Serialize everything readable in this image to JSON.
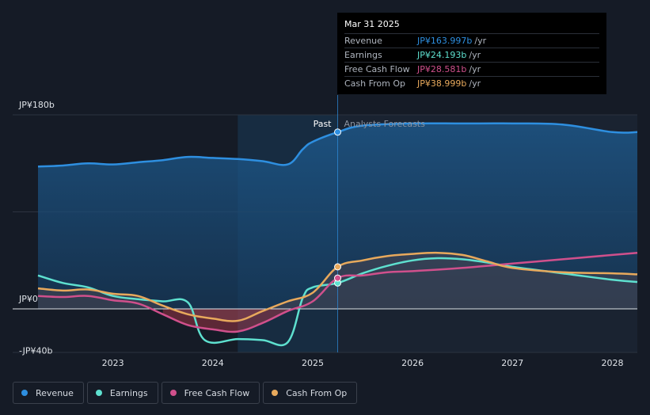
{
  "tooltip": {
    "date": "Mar 31 2025",
    "rows": [
      {
        "label": "Revenue",
        "value": "JP¥163.997b",
        "unit": "/yr",
        "color": "#2e8fe0"
      },
      {
        "label": "Earnings",
        "value": "JP¥24.193b",
        "unit": "/yr",
        "color": "#5ee0cf"
      },
      {
        "label": "Free Cash Flow",
        "value": "JP¥28.581b",
        "unit": "/yr",
        "color": "#d0508c"
      },
      {
        "label": "Cash From Op",
        "value": "JP¥38.999b",
        "unit": "/yr",
        "color": "#e8a95c"
      }
    ]
  },
  "labels": {
    "past": "Past",
    "forecast": "Analysts Forecasts"
  },
  "legend": [
    {
      "label": "Revenue",
      "color": "#2e8fe0"
    },
    {
      "label": "Earnings",
      "color": "#5ee0cf"
    },
    {
      "label": "Free Cash Flow",
      "color": "#d0508c"
    },
    {
      "label": "Cash From Op",
      "color": "#e8a95c"
    }
  ],
  "chart_data": {
    "type": "line",
    "y_unit": "JP¥ billions",
    "ylim": [
      -40,
      180
    ],
    "y_tick_labels": [
      {
        "value": 180,
        "label": "JP¥180b"
      },
      {
        "value": 0,
        "label": "JP¥0"
      },
      {
        "value": -40,
        "label": "-JP¥40b"
      }
    ],
    "x_tick_labels": [
      "2023",
      "2024",
      "2025",
      "2026",
      "2027",
      "2028"
    ],
    "xlim": [
      2022.25,
      2028.25
    ],
    "past_end": 2025.25,
    "highlight_start": 2024.25,
    "series": [
      {
        "name": "Revenue",
        "color": "#2e8fe0",
        "points": [
          [
            2022.25,
            132
          ],
          [
            2022.5,
            133
          ],
          [
            2022.75,
            135
          ],
          [
            2023.0,
            134
          ],
          [
            2023.25,
            136
          ],
          [
            2023.5,
            138
          ],
          [
            2023.75,
            141
          ],
          [
            2024.0,
            140
          ],
          [
            2024.25,
            139
          ],
          [
            2024.5,
            137
          ],
          [
            2024.75,
            134
          ],
          [
            2024.9,
            148
          ],
          [
            2025.0,
            155
          ],
          [
            2025.25,
            164
          ],
          [
            2025.5,
            170
          ],
          [
            2026.0,
            172
          ],
          [
            2026.5,
            172
          ],
          [
            2027.0,
            172
          ],
          [
            2027.5,
            171
          ],
          [
            2028.0,
            164
          ],
          [
            2028.25,
            164
          ]
        ]
      },
      {
        "name": "Earnings",
        "color": "#5ee0cf",
        "points": [
          [
            2022.25,
            31
          ],
          [
            2022.5,
            24
          ],
          [
            2022.75,
            20
          ],
          [
            2023.0,
            12
          ],
          [
            2023.25,
            9
          ],
          [
            2023.5,
            7
          ],
          [
            2023.75,
            6
          ],
          [
            2023.92,
            -29
          ],
          [
            2024.25,
            -28
          ],
          [
            2024.5,
            -29
          ],
          [
            2024.75,
            -31
          ],
          [
            2024.9,
            10
          ],
          [
            2025.0,
            20
          ],
          [
            2025.25,
            24
          ],
          [
            2025.5,
            33
          ],
          [
            2025.75,
            40
          ],
          [
            2026.0,
            45
          ],
          [
            2026.25,
            47
          ],
          [
            2026.5,
            46
          ],
          [
            2026.75,
            43
          ],
          [
            2027.0,
            39
          ],
          [
            2027.5,
            33
          ],
          [
            2028.0,
            27
          ],
          [
            2028.25,
            25
          ]
        ]
      },
      {
        "name": "Free Cash Flow",
        "color": "#d0508c",
        "points": [
          [
            2022.25,
            12
          ],
          [
            2022.5,
            11
          ],
          [
            2022.75,
            12
          ],
          [
            2023.0,
            8
          ],
          [
            2023.25,
            5
          ],
          [
            2023.5,
            -5
          ],
          [
            2023.75,
            -15
          ],
          [
            2024.0,
            -19
          ],
          [
            2024.25,
            -21
          ],
          [
            2024.5,
            -13
          ],
          [
            2024.75,
            -2
          ],
          [
            2025.0,
            7
          ],
          [
            2025.25,
            28.6
          ],
          [
            2025.5,
            31
          ],
          [
            2025.75,
            34
          ],
          [
            2026.0,
            35
          ],
          [
            2026.5,
            38
          ],
          [
            2027.0,
            42
          ],
          [
            2027.5,
            46
          ],
          [
            2028.0,
            50
          ],
          [
            2028.25,
            52
          ]
        ]
      },
      {
        "name": "Cash From Op",
        "color": "#e8a95c",
        "points": [
          [
            2022.25,
            19
          ],
          [
            2022.5,
            17
          ],
          [
            2022.75,
            18
          ],
          [
            2023.0,
            14
          ],
          [
            2023.25,
            12
          ],
          [
            2023.5,
            3
          ],
          [
            2023.75,
            -5
          ],
          [
            2024.0,
            -9
          ],
          [
            2024.25,
            -11
          ],
          [
            2024.5,
            -2
          ],
          [
            2024.75,
            7
          ],
          [
            2025.0,
            15
          ],
          [
            2025.25,
            39
          ],
          [
            2025.5,
            45
          ],
          [
            2025.75,
            49
          ],
          [
            2026.0,
            51
          ],
          [
            2026.25,
            52
          ],
          [
            2026.5,
            50
          ],
          [
            2026.75,
            44
          ],
          [
            2027.0,
            38
          ],
          [
            2027.5,
            34
          ],
          [
            2028.0,
            33
          ],
          [
            2028.25,
            32
          ]
        ]
      }
    ]
  }
}
